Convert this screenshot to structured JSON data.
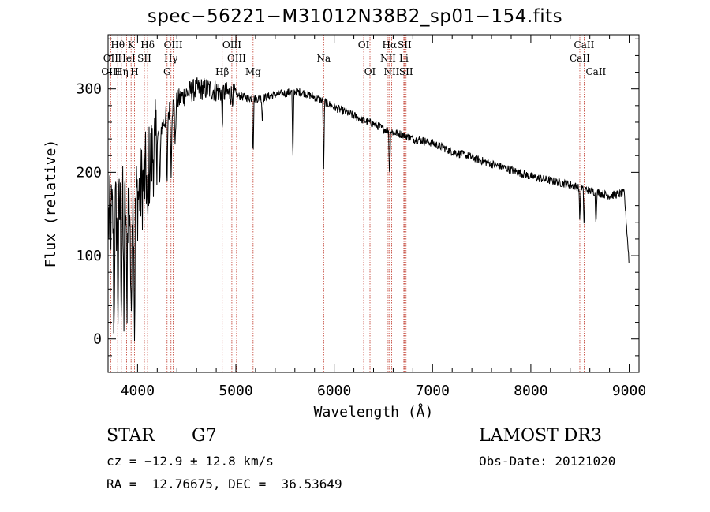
{
  "chart_data": {
    "type": "line",
    "title": "spec−56221−M31012N38B2_sp01−154.fits",
    "xlabel": "Wavelength (Å)",
    "ylabel": "Flux (relative)",
    "xlim": [
      3700,
      9100
    ],
    "ylim": [
      -40,
      365
    ],
    "x_ticks": [
      4000,
      5000,
      6000,
      7000,
      8000,
      9000
    ],
    "y_ticks": [
      0,
      100,
      200,
      300
    ],
    "continuum": {
      "x": [
        3700,
        3800,
        3900,
        4000,
        4100,
        4200,
        4300,
        4400,
        4500,
        4600,
        4700,
        4800,
        4900,
        5000,
        5100,
        5200,
        5300,
        5400,
        5500,
        5600,
        5700,
        5800,
        5900,
        6000,
        6100,
        6200,
        6300,
        6400,
        6500,
        6600,
        6700,
        6800,
        6900,
        7000,
        7200,
        7400,
        7600,
        7800,
        8000,
        8200,
        8400,
        8600,
        8800,
        8950,
        9000
      ],
      "y": [
        140,
        150,
        160,
        170,
        200,
        240,
        270,
        285,
        295,
        300,
        300,
        298,
        295,
        292,
        290,
        288,
        290,
        293,
        295,
        297,
        295,
        290,
        285,
        278,
        273,
        268,
        262,
        258,
        252,
        248,
        245,
        240,
        238,
        235,
        225,
        218,
        210,
        203,
        195,
        190,
        185,
        178,
        172,
        175,
        90
      ]
    },
    "absorption_lines": [
      {
        "wave": 3760,
        "depth": 150
      },
      {
        "wave": 3800,
        "depth": 120
      },
      {
        "wave": 3835,
        "depth": 110
      },
      {
        "wave": 3860,
        "depth": 130
      },
      {
        "wave": 3890,
        "depth": 140
      },
      {
        "wave": 3934,
        "depth": 175
      },
      {
        "wave": 3969,
        "depth": 160
      },
      {
        "wave": 4102,
        "depth": 90
      },
      {
        "wave": 4227,
        "depth": 80
      },
      {
        "wave": 4300,
        "depth": 100
      },
      {
        "wave": 4341,
        "depth": 80
      },
      {
        "wave": 4383,
        "depth": 60
      },
      {
        "wave": 4861,
        "depth": 40
      },
      {
        "wave": 5175,
        "depth": 70
      },
      {
        "wave": 5270,
        "depth": 30
      },
      {
        "wave": 5580,
        "depth": 90
      },
      {
        "wave": 5893,
        "depth": 85
      },
      {
        "wave": 6563,
        "depth": 60
      },
      {
        "wave": 8498,
        "depth": 40
      },
      {
        "wave": 8542,
        "depth": 45
      },
      {
        "wave": 8662,
        "depth": 40
      }
    ],
    "line_markers": [
      {
        "label": "Hθ",
        "wave": 3798,
        "row": 1
      },
      {
        "label": "K",
        "wave": 3934,
        "row": 1
      },
      {
        "label": "Hδ",
        "wave": 4102,
        "row": 1
      },
      {
        "label": "OIII",
        "wave": 4363,
        "row": 1
      },
      {
        "label": "OIII",
        "wave": 4959,
        "row": 1
      },
      {
        "label": "OI",
        "wave": 6300,
        "row": 1
      },
      {
        "label": "Hα",
        "wave": 6563,
        "row": 1
      },
      {
        "label": "SII",
        "wave": 6716,
        "row": 1
      },
      {
        "label": "CaII",
        "wave": 8542,
        "row": 1
      },
      {
        "label": "OII",
        "wave": 3727,
        "row": 2
      },
      {
        "label": "HeI",
        "wave": 3889,
        "row": 2
      },
      {
        "label": "SII",
        "wave": 4069,
        "row": 2
      },
      {
        "label": "Hγ",
        "wave": 4340,
        "row": 2
      },
      {
        "label": "OIII",
        "wave": 5007,
        "row": 2
      },
      {
        "label": "Na",
        "wave": 5893,
        "row": 2
      },
      {
        "label": "NII",
        "wave": 6548,
        "row": 2
      },
      {
        "label": "Li",
        "wave": 6708,
        "row": 2
      },
      {
        "label": "CaII",
        "wave": 8498,
        "row": 2
      },
      {
        "label": "OIII",
        "wave": 3727,
        "row": 3
      },
      {
        "label": "Hη",
        "wave": 3835,
        "row": 3
      },
      {
        "label": "H",
        "wave": 3969,
        "row": 3
      },
      {
        "label": "G",
        "wave": 4300,
        "row": 3
      },
      {
        "label": "Hβ",
        "wave": 4861,
        "row": 3
      },
      {
        "label": "Mg",
        "wave": 5175,
        "row": 3
      },
      {
        "label": "OI",
        "wave": 6364,
        "row": 3
      },
      {
        "label": "NII",
        "wave": 6584,
        "row": 3
      },
      {
        "label": "SII",
        "wave": 6731,
        "row": 3
      },
      {
        "label": "CaII",
        "wave": 8662,
        "row": 3
      }
    ],
    "colors": {
      "spectrum": "#000000",
      "markers": "#c0392b",
      "axes": "#000000"
    }
  },
  "info": {
    "object_class": "STAR",
    "subclass": "G7",
    "survey": "LAMOST DR3",
    "redshift_text": "cz = −12.9 ± 12.8 km/s",
    "obs_date_text": "Obs-Date: 20121020",
    "coords_text": "RA =  12.76675, DEC =  36.53649"
  }
}
